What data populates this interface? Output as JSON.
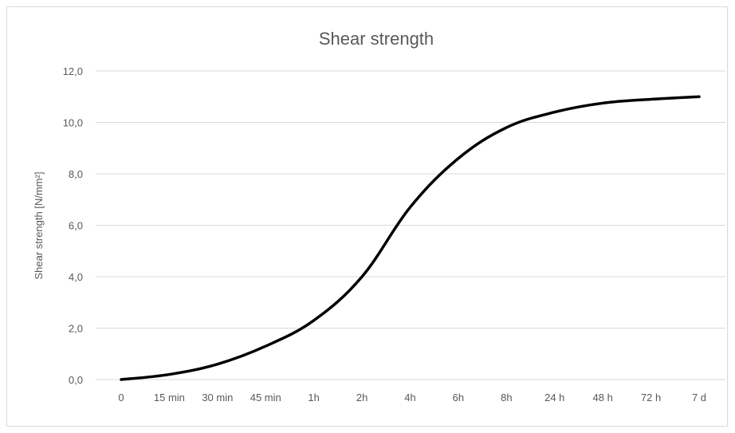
{
  "chart_data": {
    "type": "line",
    "title": "Shear strength",
    "xlabel": "",
    "ylabel": "Shear strength [N/mm²]",
    "categories": [
      "0",
      "15 min",
      "30 min",
      "45 min",
      "1h",
      "2h",
      "4h",
      "6h",
      "8h",
      "24 h",
      "48 h",
      "72 h",
      "7 d"
    ],
    "series": [
      {
        "values": [
          0.0,
          0.2,
          0.6,
          1.3,
          2.3,
          4.0,
          6.7,
          8.6,
          9.8,
          10.4,
          10.75,
          10.9,
          11.0
        ]
      }
    ],
    "ylim": [
      0,
      12
    ],
    "yticks": [
      "0,0",
      "2,0",
      "4,0",
      "6,0",
      "8,0",
      "10,0",
      "12,0"
    ],
    "ytick_values": [
      0,
      2,
      4,
      6,
      8,
      10,
      12
    ],
    "grid": "horizontal",
    "legend": "none",
    "colors": {
      "series": "#000000",
      "grid": "#d9d9d9",
      "text": "#595959"
    }
  }
}
